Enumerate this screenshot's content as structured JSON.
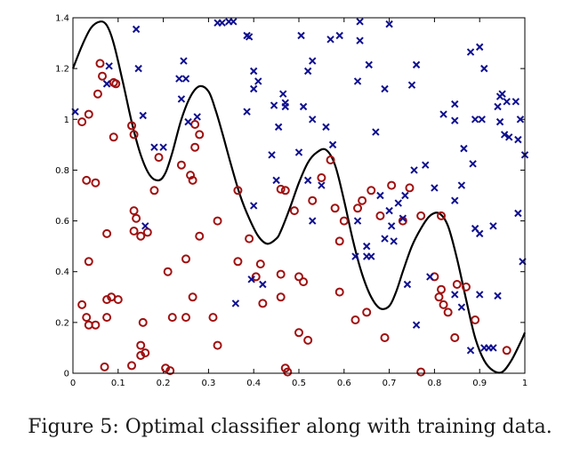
{
  "caption": "Figure 5: Optimal classifier along with training data.",
  "chart_data": {
    "type": "scatter",
    "title": "",
    "xlabel": "",
    "ylabel": "",
    "xlim": [
      0,
      1
    ],
    "ylim": [
      0,
      1.4
    ],
    "x_ticks": [
      0,
      0.1,
      0.2,
      0.3,
      0.4,
      0.5,
      0.6,
      0.7,
      0.8,
      0.9,
      1
    ],
    "x_tick_labels": [
      "0",
      "0.1",
      "0.2",
      "0.3",
      "0.4",
      "0.5",
      "0.6",
      "0.7",
      "0.8",
      "0.9",
      "1"
    ],
    "y_ticks": [
      0,
      0.2,
      0.4,
      0.6,
      0.8,
      1.0,
      1.2,
      1.4
    ],
    "y_tick_labels": [
      "0",
      "0.2",
      "0.4",
      "0.6",
      "0.8",
      "1",
      "1.2",
      "1.4"
    ],
    "colors": {
      "class_o": "#a01010",
      "class_x": "#101090",
      "boundary": "#000000"
    },
    "boundary": {
      "name": "optimal classifier",
      "x": [
        0,
        0.02,
        0.04,
        0.06,
        0.075,
        0.09,
        0.11,
        0.13,
        0.15,
        0.17,
        0.19,
        0.205,
        0.22,
        0.24,
        0.26,
        0.28,
        0.3,
        0.315,
        0.33,
        0.35,
        0.37,
        0.39,
        0.41,
        0.43,
        0.45,
        0.46,
        0.48,
        0.5,
        0.52,
        0.54,
        0.56,
        0.58,
        0.6,
        0.62,
        0.64,
        0.66,
        0.68,
        0.7,
        0.715,
        0.73,
        0.75,
        0.77,
        0.79,
        0.81,
        0.83,
        0.85,
        0.87,
        0.89,
        0.91,
        0.93,
        0.95,
        0.97,
        0.99,
        1.0
      ],
      "y": [
        1.2,
        1.29,
        1.36,
        1.385,
        1.37,
        1.3,
        1.15,
        0.99,
        0.86,
        0.78,
        0.76,
        0.79,
        0.87,
        1.0,
        1.09,
        1.13,
        1.11,
        1.04,
        0.95,
        0.82,
        0.7,
        0.61,
        0.54,
        0.51,
        0.53,
        0.56,
        0.65,
        0.75,
        0.83,
        0.87,
        0.88,
        0.82,
        0.68,
        0.52,
        0.39,
        0.3,
        0.255,
        0.265,
        0.32,
        0.4,
        0.5,
        0.57,
        0.62,
        0.63,
        0.58,
        0.45,
        0.29,
        0.14,
        0.05,
        0.01,
        0.005,
        0.05,
        0.12,
        0.16
      ]
    },
    "series": [
      {
        "name": "class o",
        "marker": "o",
        "x": [
          0.02,
          0.035,
          0.06,
          0.055,
          0.065,
          0.095,
          0.09,
          0.03,
          0.05,
          0.09,
          0.135,
          0.13,
          0.19,
          0.24,
          0.27,
          0.28,
          0.27,
          0.265,
          0.26,
          0.18,
          0.035,
          0.075,
          0.135,
          0.14,
          0.15,
          0.135,
          0.165,
          0.035,
          0.085,
          0.075,
          0.1,
          0.02,
          0.03,
          0.05,
          0.075,
          0.15,
          0.21,
          0.22,
          0.25,
          0.265,
          0.28,
          0.32,
          0.365,
          0.365,
          0.39,
          0.405,
          0.415,
          0.42,
          0.46,
          0.46,
          0.47,
          0.49,
          0.53,
          0.55,
          0.57,
          0.58,
          0.59,
          0.6,
          0.59,
          0.5,
          0.51,
          0.46,
          0.5,
          0.52,
          0.31,
          0.32,
          0.25,
          0.205,
          0.07,
          0.13,
          0.15,
          0.155,
          0.16,
          0.215,
          0.47,
          0.475,
          0.625,
          0.65,
          0.69,
          0.705,
          0.745,
          0.73,
          0.66,
          0.64,
          0.63,
          0.68,
          0.77,
          0.815,
          0.8,
          0.81,
          0.82,
          0.83,
          0.85,
          0.87,
          0.89,
          0.845,
          0.96,
          0.815,
          0.77
        ],
        "y": [
          0.99,
          1.02,
          1.22,
          1.1,
          1.17,
          1.14,
          1.145,
          0.76,
          0.75,
          0.93,
          0.94,
          0.975,
          0.85,
          0.82,
          0.98,
          0.94,
          0.89,
          0.76,
          0.78,
          0.72,
          0.44,
          0.55,
          0.56,
          0.61,
          0.54,
          0.64,
          0.555,
          0.19,
          0.3,
          0.29,
          0.29,
          0.27,
          0.22,
          0.19,
          0.22,
          0.11,
          0.4,
          0.22,
          0.22,
          0.3,
          0.54,
          0.6,
          0.72,
          0.44,
          0.53,
          0.38,
          0.43,
          0.275,
          0.3,
          0.39,
          0.72,
          0.64,
          0.68,
          0.77,
          0.84,
          0.65,
          0.52,
          0.6,
          0.32,
          0.38,
          0.36,
          0.725,
          0.16,
          0.13,
          0.22,
          0.11,
          0.45,
          0.02,
          0.025,
          0.03,
          0.07,
          0.2,
          0.08,
          0.01,
          0.02,
          0.005,
          0.21,
          0.24,
          0.14,
          0.74,
          0.73,
          0.6,
          0.72,
          0.68,
          0.65,
          0.62,
          0.005,
          0.33,
          0.38,
          0.3,
          0.27,
          0.24,
          0.35,
          0.34,
          0.21,
          0.14,
          0.09,
          0.62,
          0.62
        ]
      },
      {
        "name": "class x",
        "marker": "x",
        "x": [
          0.005,
          0.075,
          0.075,
          0.08,
          0.14,
          0.155,
          0.145,
          0.18,
          0.2,
          0.235,
          0.245,
          0.25,
          0.24,
          0.255,
          0.275,
          0.32,
          0.33,
          0.345,
          0.355,
          0.385,
          0.39,
          0.4,
          0.41,
          0.4,
          0.385,
          0.44,
          0.445,
          0.455,
          0.465,
          0.47,
          0.47,
          0.505,
          0.51,
          0.5,
          0.52,
          0.53,
          0.53,
          0.56,
          0.57,
          0.575,
          0.59,
          0.635,
          0.63,
          0.635,
          0.655,
          0.67,
          0.69,
          0.7,
          0.76,
          0.75,
          0.82,
          0.845,
          0.845,
          0.88,
          0.89,
          0.905,
          0.94,
          0.945,
          0.95,
          0.96,
          0.98,
          0.99,
          0.985,
          0.91,
          0.9,
          0.955,
          0.965,
          0.945,
          0.885,
          0.865,
          0.89,
          0.9,
          0.93,
          0.86,
          0.8,
          0.78,
          0.755,
          0.735,
          0.72,
          0.705,
          0.7,
          0.71,
          0.69,
          0.68,
          0.66,
          0.65,
          0.65,
          0.625,
          0.63,
          0.55,
          0.53,
          0.52,
          0.45,
          0.4,
          0.395,
          0.42,
          0.16,
          0.36,
          0.985,
          0.995,
          1.0,
          0.94,
          0.93,
          0.92,
          0.91,
          0.88,
          0.86,
          0.845,
          0.9,
          0.845,
          0.76,
          0.74,
          0.73,
          0.79
        ],
        "y": [
          1.03,
          1.14,
          1.14,
          1.21,
          1.355,
          1.015,
          1.2,
          0.89,
          0.89,
          1.16,
          1.23,
          1.16,
          1.08,
          0.99,
          1.01,
          1.38,
          1.38,
          1.385,
          1.385,
          1.33,
          1.325,
          1.19,
          1.15,
          1.12,
          1.03,
          0.86,
          1.055,
          0.97,
          1.1,
          1.05,
          1.065,
          1.33,
          1.05,
          0.87,
          1.19,
          1.23,
          1.0,
          0.97,
          1.315,
          0.9,
          1.33,
          1.385,
          1.15,
          1.31,
          1.215,
          0.95,
          1.12,
          1.375,
          1.215,
          1.135,
          1.02,
          0.995,
          1.06,
          1.265,
          1.0,
          1.0,
          1.05,
          1.09,
          1.1,
          1.07,
          1.07,
          1.0,
          0.92,
          1.2,
          1.285,
          0.94,
          0.93,
          0.99,
          0.825,
          0.885,
          0.57,
          0.55,
          0.58,
          0.74,
          0.73,
          0.82,
          0.8,
          0.7,
          0.67,
          0.58,
          0.64,
          0.52,
          0.53,
          0.7,
          0.46,
          0.5,
          0.46,
          0.46,
          0.6,
          0.74,
          0.6,
          0.76,
          0.76,
          0.66,
          0.37,
          0.35,
          0.58,
          0.275,
          0.63,
          0.44,
          0.86,
          0.305,
          0.1,
          0.1,
          0.1,
          0.09,
          0.26,
          0.31,
          0.31,
          0.68,
          0.19,
          0.35,
          0.61,
          0.38
        ]
      }
    ]
  }
}
